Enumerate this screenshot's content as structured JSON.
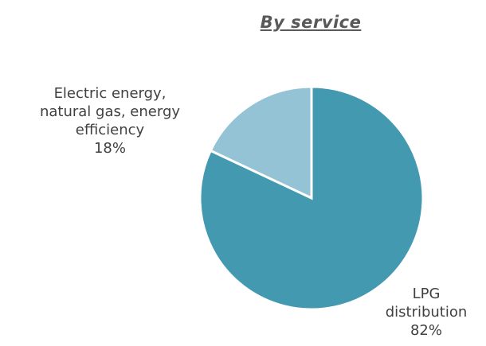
{
  "chart_data": {
    "type": "pie",
    "title": "By service",
    "slices": [
      {
        "name": "LPG distribution",
        "value": 82,
        "label_lines": [
          "LPG",
          "distribution"
        ],
        "pct_label": "82%",
        "color": "#4399B0"
      },
      {
        "name": "Electric energy, natural gas, energy efficiency",
        "value": 18,
        "label_lines": [
          "Electric energy,",
          "natural gas, energy",
          "efficiency"
        ],
        "pct_label": "18%",
        "color": "#93C3D5"
      }
    ],
    "start": "12 o'clock",
    "direction": "clockwise",
    "legend": "none"
  }
}
